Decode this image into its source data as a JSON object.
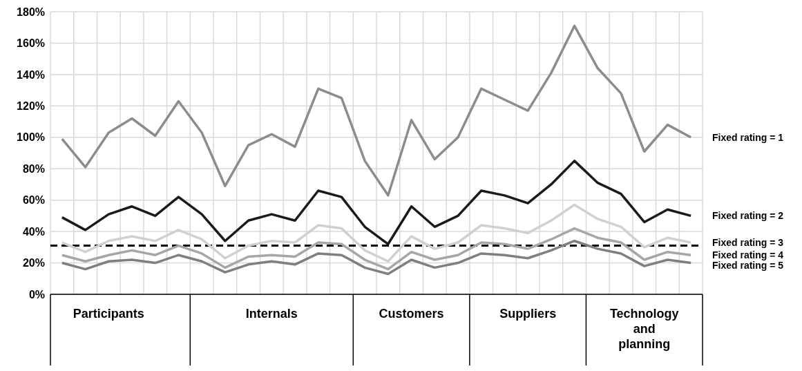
{
  "chart_data": {
    "type": "line",
    "categories": [
      null,
      null,
      "Participants",
      null,
      null,
      null,
      null,
      null,
      null,
      "Internals",
      null,
      null,
      null,
      null,
      null,
      "Customers",
      null,
      null,
      null,
      null,
      "Suppliers",
      null,
      null,
      null,
      null,
      "Technology and planning",
      null,
      null
    ],
    "series": [
      {
        "name": "Fixed rating = 1",
        "color": "#8c8c8c",
        "values": [
          99,
          81,
          103,
          112,
          101,
          123,
          103,
          69,
          95,
          102,
          94,
          131,
          125,
          85,
          63,
          111,
          86,
          100,
          131,
          124,
          117,
          141,
          171,
          144,
          128,
          91,
          108,
          100
        ]
      },
      {
        "name": "Fixed rating = 2",
        "color": "#1a1a1a",
        "values": [
          49,
          41,
          51,
          56,
          50,
          62,
          51,
          34,
          47,
          51,
          47,
          66,
          62,
          43,
          32,
          56,
          43,
          50,
          66,
          63,
          58,
          70,
          85,
          71,
          64,
          46,
          54,
          50
        ]
      },
      {
        "name": "Fixed rating = 3",
        "color": "#d0d0d0",
        "values": [
          33,
          27,
          34,
          37,
          34,
          41,
          35,
          23,
          31,
          34,
          33,
          44,
          42,
          28,
          21,
          37,
          29,
          33,
          44,
          42,
          39,
          47,
          57,
          48,
          43,
          30,
          36,
          33
        ]
      },
      {
        "name": "Fixed rating = 4",
        "color": "#a6a6a6",
        "values": [
          25,
          21,
          25,
          28,
          25,
          31,
          26,
          17,
          24,
          25,
          24,
          33,
          32,
          22,
          16,
          27,
          22,
          25,
          33,
          32,
          29,
          35,
          42,
          36,
          33,
          22,
          27,
          25
        ]
      },
      {
        "name": "Fixed rating = 5",
        "color": "#7f7f7f",
        "values": [
          20,
          16,
          21,
          22,
          20,
          25,
          21,
          14,
          19,
          21,
          19,
          26,
          25,
          17,
          13,
          22,
          17,
          20,
          26,
          25,
          23,
          28,
          34,
          29,
          26,
          18,
          22,
          20
        ]
      }
    ],
    "ylim": [
      0,
      180
    ],
    "yticks": [
      {
        "value": 0,
        "label": "0%"
      },
      {
        "value": 20,
        "label": "20%"
      },
      {
        "value": 40,
        "label": "40%"
      },
      {
        "value": 60,
        "label": "60%"
      },
      {
        "value": 80,
        "label": "80%"
      },
      {
        "value": 100,
        "label": "100%"
      },
      {
        "value": 120,
        "label": "120%"
      },
      {
        "value": 140,
        "label": "140%"
      },
      {
        "value": 160,
        "label": "160%"
      },
      {
        "value": 180,
        "label": "180%"
      }
    ],
    "ref_lines": [
      {
        "axis": "y",
        "value": 31,
        "color": "#000000",
        "line_style": "dashed"
      }
    ],
    "grid": true,
    "legend": false,
    "marker": "none",
    "line_style": "solid"
  }
}
